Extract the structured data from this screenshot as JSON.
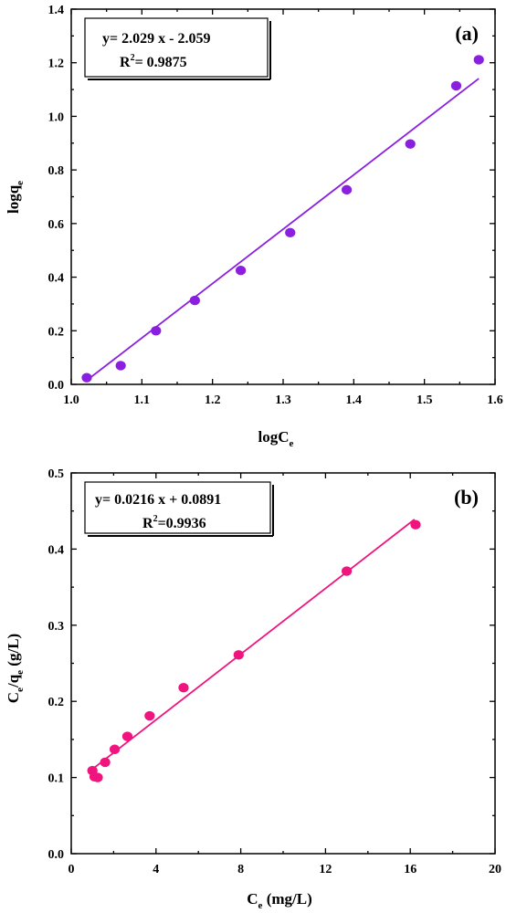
{
  "chart_data": [
    {
      "type": "scatter",
      "panel_label": "(a)",
      "xlabel": {
        "main": "logC",
        "sub": "e"
      },
      "ylabel": {
        "main": "logq",
        "sub": "e"
      },
      "xlim": [
        1.0,
        1.6
      ],
      "ylim": [
        0.0,
        1.4
      ],
      "xticks": [
        "1.0",
        "1.1",
        "1.2",
        "1.3",
        "1.4",
        "1.5",
        "1.6"
      ],
      "yticks": [
        "0.0",
        "0.2",
        "0.4",
        "0.6",
        "0.8",
        "1.0",
        "1.2",
        "1.4"
      ],
      "equation": {
        "line1": "y= 2.029 x - 2.059",
        "r_main": "R",
        "r_exp": "2",
        "r_value": "= 0.9875"
      },
      "color": "#8B1FE0",
      "points": {
        "x": [
          1.022,
          1.07,
          1.12,
          1.175,
          1.24,
          1.31,
          1.39,
          1.48,
          1.545,
          1.577
        ],
        "y": [
          0.025,
          0.07,
          0.2,
          0.313,
          0.425,
          0.566,
          0.726,
          0.897,
          1.114,
          1.211
        ]
      },
      "fit": {
        "x": [
          1.022,
          1.577
        ],
        "y": [
          0.015,
          1.141
        ]
      }
    },
    {
      "type": "scatter",
      "panel_label": "(b)",
      "xlabel": {
        "main": "C",
        "sub": "e",
        "rest": " (mg/L)"
      },
      "ylabel": {
        "main": "C",
        "sub": "e",
        "mid": "/q",
        "sub2": "e",
        "rest": " (g/L)"
      },
      "xlim": [
        0,
        20
      ],
      "ylim": [
        0.0,
        0.5
      ],
      "xticks": [
        "0",
        "4",
        "8",
        "12",
        "16",
        "20"
      ],
      "yticks": [
        "0.0",
        "0.1",
        "0.2",
        "0.3",
        "0.4",
        "0.5"
      ],
      "equation": {
        "line1": "y= 0.0216 x + 0.0891",
        "r_main": "R",
        "r_exp": "2",
        "r_value": "=0.9936"
      },
      "color": "#F0147E",
      "points": {
        "x": [
          1.0,
          1.1,
          1.25,
          1.6,
          2.05,
          2.65,
          3.7,
          5.3,
          7.9,
          13.0,
          16.25
        ],
        "y": [
          0.109,
          0.101,
          0.1,
          0.12,
          0.137,
          0.154,
          0.181,
          0.218,
          0.261,
          0.371,
          0.432
        ]
      },
      "fit": {
        "x": [
          1.0,
          16.2
        ],
        "y": [
          0.111,
          0.439
        ]
      }
    }
  ]
}
